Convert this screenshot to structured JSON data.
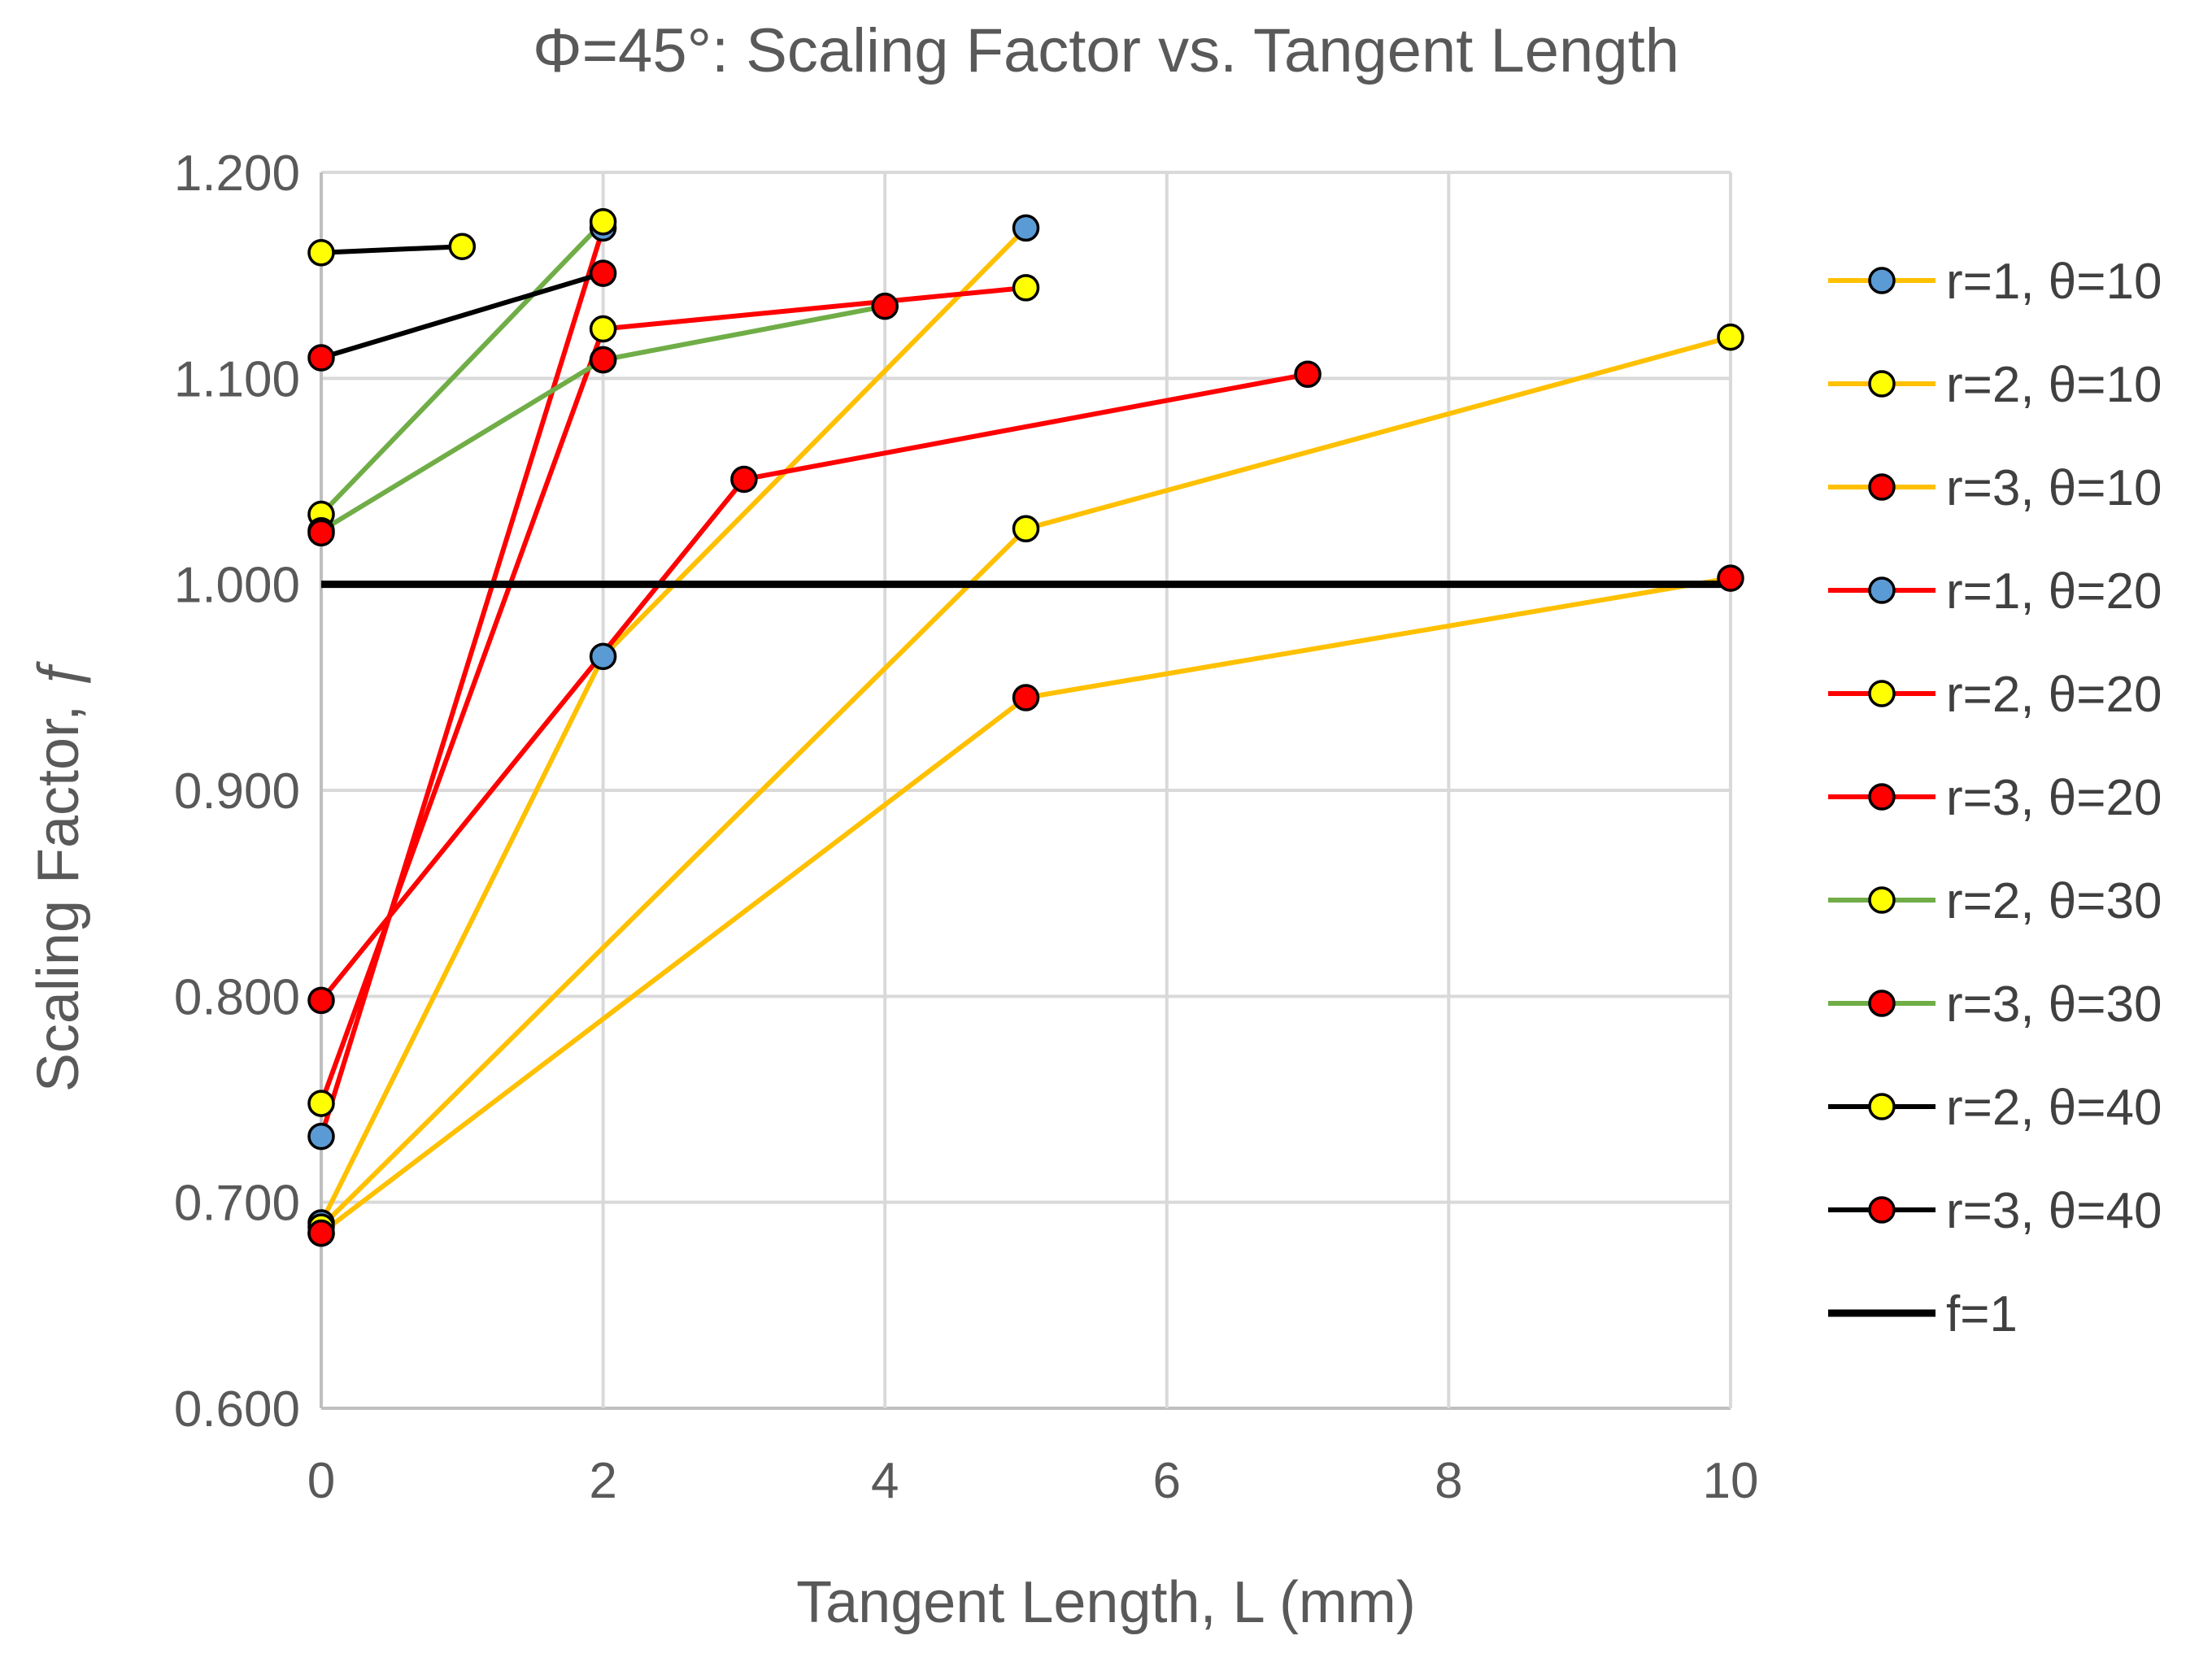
{
  "chart_data": {
    "type": "line",
    "title": "Φ=45°: Scaling Factor vs. Tangent Length",
    "xlabel": "Tangent Length, L (mm)",
    "ylabel": "Scaling Factor, ƒ",
    "xlim": [
      0,
      10
    ],
    "ylim": [
      0.6,
      1.2
    ],
    "xticks": [
      0,
      2,
      4,
      6,
      8,
      10
    ],
    "xtick_labels": [
      "0",
      "2",
      "4",
      "6",
      "8",
      "10"
    ],
    "yticks": [
      0.6,
      0.7,
      0.8,
      0.9,
      1.0,
      1.1,
      1.2
    ],
    "ytick_labels": [
      "0.600",
      "0.700",
      "0.800",
      "0.900",
      "1.000",
      "1.100",
      "1.200"
    ],
    "grid": true,
    "legend_position": "right",
    "series": [
      {
        "name": "r=1, θ=10",
        "line_color": "#FFC000",
        "marker_color": "#5B9BD5",
        "x": [
          0,
          2,
          5
        ],
        "y": [
          0.69,
          0.965,
          1.173
        ]
      },
      {
        "name": "r=2, θ=10",
        "line_color": "#FFC000",
        "marker_color": "#FFFF00",
        "x": [
          0,
          5,
          10
        ],
        "y": [
          0.688,
          1.027,
          1.12
        ]
      },
      {
        "name": "r=3, θ=10",
        "line_color": "#FFC000",
        "marker_color": "#FF0000",
        "x": [
          0,
          5,
          10
        ],
        "y": [
          0.685,
          0.945,
          1.003
        ]
      },
      {
        "name": "r=1, θ=20",
        "line_color": "#FF0000",
        "marker_color": "#5B9BD5",
        "x": [
          0,
          2
        ],
        "y": [
          0.732,
          1.173
        ]
      },
      {
        "name": "r=2, θ=20",
        "line_color": "#FF0000",
        "marker_color": "#FFFF00",
        "x": [
          0,
          2,
          5
        ],
        "y": [
          0.748,
          1.124,
          1.144
        ]
      },
      {
        "name": "r=3, θ=20",
        "line_color": "#FF0000",
        "marker_color": "#FF0000",
        "x": [
          0,
          3,
          7
        ],
        "y": [
          0.798,
          1.051,
          1.102
        ]
      },
      {
        "name": "r=2, θ=30",
        "line_color": "#70AD47",
        "marker_color": "#FFFF00",
        "x": [
          0,
          2
        ],
        "y": [
          1.034,
          1.176
        ]
      },
      {
        "name": "r=3, θ=30",
        "line_color": "#70AD47",
        "marker_color": "#FF0000",
        "x": [
          0,
          2,
          4
        ],
        "y": [
          1.026,
          1.109,
          1.135
        ]
      },
      {
        "name": "r=2, θ=40",
        "line_color": "#000000",
        "marker_color": "#FFFF00",
        "x": [
          0,
          1
        ],
        "y": [
          1.161,
          1.164
        ]
      },
      {
        "name": "r=3, θ=40",
        "line_color": "#000000",
        "marker_color": "#FF0000",
        "x": [
          0,
          2
        ],
        "y": [
          1.11,
          1.151
        ]
      },
      {
        "name": "f=1",
        "line_color": "#000000",
        "marker_color": null,
        "x": [
          0,
          10
        ],
        "y": [
          1.0,
          1.0
        ]
      }
    ],
    "extra_points": [
      {
        "x": 0,
        "y": 1.025,
        "marker_color": "#FF0000",
        "line_color": "#FF0000"
      },
      {
        "x": 2,
        "y": 1.109,
        "marker_color": "#FF0000",
        "line_color": "#FF0000"
      },
      {
        "x": 0,
        "y": 0.685,
        "marker_color": "#FF0000",
        "line_color": "#000000"
      }
    ]
  }
}
